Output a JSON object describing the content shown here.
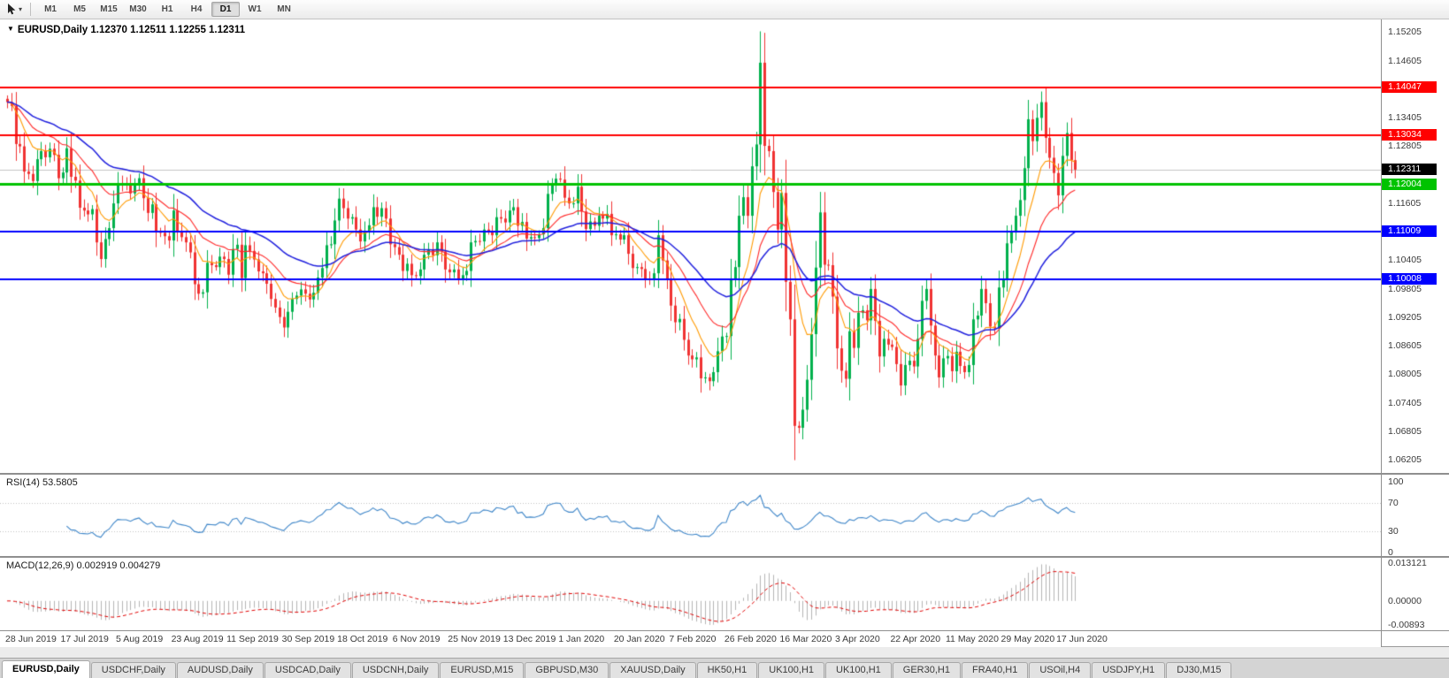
{
  "toolbar": {
    "timeframes": [
      "M1",
      "M5",
      "M15",
      "M30",
      "H1",
      "H4",
      "D1",
      "W1",
      "MN"
    ],
    "active_timeframe": "D1"
  },
  "chart_header": {
    "collapse_icon": "▼",
    "symbol": "EURUSD,Daily",
    "ohlc": "1.12370 1.12511 1.12255 1.12311"
  },
  "chart_data": {
    "type": "candlestick",
    "symbol": "EURUSD",
    "timeframe": "Daily",
    "current_ohlc": {
      "open": "1.12370",
      "high": "1.12511",
      "low": "1.12255",
      "close": "1.12311"
    },
    "first_open": 1.138,
    "closes": [
      1.1373,
      1.1365,
      1.1285,
      1.128,
      1.1227,
      1.1222,
      1.1207,
      1.1253,
      1.127,
      1.1257,
      1.1275,
      1.1262,
      1.1213,
      1.1225,
      1.1276,
      1.1216,
      1.1208,
      1.1151,
      1.1145,
      1.1137,
      1.1148,
      1.1078,
      1.1043,
      1.1085,
      1.1108,
      1.116,
      1.1203,
      1.12,
      1.1199,
      1.1181,
      1.1201,
      1.1213,
      1.1171,
      1.114,
      1.1158,
      1.11,
      1.1098,
      1.1091,
      1.1082,
      1.1145,
      1.1101,
      1.1089,
      1.1078,
      1.1057,
      1.099,
      1.097,
      1.0973,
      1.1035,
      1.103,
      1.1026,
      1.1048,
      1.1043,
      1.101,
      1.1064,
      1.1073,
      1.1003,
      1.1072,
      1.106,
      1.1042,
      1.1017,
      1.1013,
      1.0991,
      1.0959,
      1.0941,
      1.0921,
      1.0899,
      1.0932,
      1.0959,
      1.0966,
      1.0979,
      1.097,
      1.0958,
      1.0972,
      1.1004,
      1.1024,
      1.1072,
      1.1074,
      1.1124,
      1.117,
      1.115,
      1.1128,
      1.1131,
      1.1105,
      1.108,
      1.1101,
      1.1114,
      1.1152,
      1.1132,
      1.115,
      1.1128,
      1.1074,
      1.1068,
      1.1052,
      1.1018,
      1.1033,
      1.1009,
      1.1007,
      1.1021,
      1.1052,
      1.1062,
      1.1051,
      1.1078,
      1.1059,
      1.1021,
      1.1015,
      1.1021,
      1.1001,
      1.1009,
      1.1018,
      1.1078,
      1.1081,
      1.108,
      1.1105,
      1.1102,
      1.1093,
      1.1131,
      1.1128,
      1.112,
      1.1145,
      1.1152,
      1.1113,
      1.1121,
      1.1086,
      1.1089,
      1.1087,
      1.1095,
      1.1108,
      1.118,
      1.1199,
      1.1212,
      1.121,
      1.1172,
      1.116,
      1.116,
      1.1195,
      1.1143,
      1.1106,
      1.1122,
      1.1113,
      1.1134,
      1.1128,
      1.1138,
      1.1093,
      1.1095,
      1.1084,
      1.1093,
      1.1054,
      1.1024,
      1.1026,
      1.1022,
      1.1002,
      1.1,
      1.1013,
      1.1093,
      1.104,
      1.1,
      1.0945,
      1.091,
      1.0917,
      1.0873,
      1.084,
      1.0832,
      1.0836,
      1.0792,
      1.0794,
      1.0786,
      1.0805,
      1.0849,
      1.088,
      1.0881,
      1.1,
      1.1026,
      1.1134,
      1.1173,
      1.1134,
      1.1238,
      1.1284,
      1.1456,
      1.1281,
      1.127,
      1.1184,
      1.1105,
      1.1182,
      1.0995,
      1.0916,
      1.0692,
      1.0688,
      1.0726,
      1.0789,
      1.0885,
      1.1025,
      1.1141,
      1.1031,
      1.103,
      1.0964,
      1.0855,
      1.0808,
      1.0791,
      1.0891,
      1.0856,
      1.093,
      1.0935,
      1.0914,
      1.098,
      1.0913,
      1.0838,
      1.0875,
      1.0863,
      1.0858,
      1.0822,
      1.0777,
      1.082,
      1.0829,
      1.0817,
      1.0875,
      1.0955,
      1.098,
      1.0903,
      1.084,
      1.0794,
      1.0834,
      1.0839,
      1.0807,
      1.0848,
      1.0818,
      1.0805,
      1.082,
      1.0916,
      1.0924,
      1.098,
      1.095,
      1.0901,
      1.0897,
      1.0983,
      1.1002,
      1.1076,
      1.1101,
      1.1134,
      1.1167,
      1.1234,
      1.1337,
      1.1291,
      1.134,
      1.1373,
      1.1298,
      1.1256,
      1.1224,
      1.1177,
      1.126,
      1.1308,
      1.1251,
      1.12311
    ],
    "x_labels": [
      "28 Jun 2019",
      "17 Jul 2019",
      "5 Aug 2019",
      "23 Aug 2019",
      "11 Sep 2019",
      "30 Sep 2019",
      "18 Oct 2019",
      "6 Nov 2019",
      "25 Nov 2019",
      "13 Dec 2019",
      "1 Jan 2020",
      "20 Jan 2020",
      "7 Feb 2020",
      "26 Feb 2020",
      "16 Mar 2020",
      "3 Apr 2020",
      "22 Apr 2020",
      "11 May 2020",
      "29 May 2020",
      "17 Jun 2020"
    ],
    "bars_per_label": 13,
    "price_axis": {
      "min": 1.0593,
      "max": 1.1547,
      "labels": [
        "1.15205",
        "1.14605",
        "1.13405",
        "1.12805",
        "1.11605",
        "1.10405",
        "1.09805",
        "1.09205",
        "1.08605",
        "1.08005",
        "1.07405",
        "1.06805",
        "1.06205"
      ]
    },
    "levels": [
      {
        "price": 1.14047,
        "label": "1.14047",
        "color": "#ff0000",
        "width": 2
      },
      {
        "price": 1.13034,
        "label": "1.13034",
        "color": "#ff0000",
        "width": 2
      },
      {
        "price": 1.12004,
        "label": "1.12004",
        "color": "#00c300",
        "width": 3
      },
      {
        "price": 1.11009,
        "label": "1.11009",
        "color": "#0000ff",
        "width": 2
      },
      {
        "price": 1.10008,
        "label": "1.10008",
        "color": "#0000ff",
        "width": 2
      }
    ],
    "current_price": {
      "value": 1.12311,
      "label": "1.12311",
      "bg": "#000000"
    },
    "candle_colors": {
      "up": "#00b04c",
      "down": "#f03232"
    },
    "moving_averages": [
      {
        "type": "EMA",
        "period": 9,
        "color": "#ff9a00"
      },
      {
        "type": "EMA",
        "period": 20,
        "color": "#ff2a2a"
      },
      {
        "type": "EMA",
        "period": 40,
        "color": "#2020dd"
      }
    ],
    "indicators": [
      {
        "name": "RSI",
        "label": "RSI(14) 53.5805",
        "period": 14,
        "value": 53.5805,
        "line_color": "#3d85c8",
        "range": [
          0,
          100
        ],
        "level_lines": [
          70,
          30
        ],
        "axis_labels": [
          "100",
          "70",
          "30",
          "0"
        ]
      },
      {
        "name": "MACD",
        "label": "MACD(12,26,9) 0.002919 0.004279",
        "fast": 12,
        "slow": 26,
        "signal": 9,
        "macd_value": 0.002919,
        "signal_value": 0.004279,
        "hist_color": "#b4b4b4",
        "signal_color": "#e00000",
        "range": [
          -0.00893,
          0.013121
        ],
        "axis_labels": [
          "0.013121",
          "0.00000",
          "-0.00893"
        ]
      }
    ]
  },
  "tab_bar": {
    "active_index": 0,
    "tabs": [
      "EURUSD,Daily",
      "USDCHF,Daily",
      "AUDUSD,Daily",
      "USDCAD,Daily",
      "USDCNH,Daily",
      "EURUSD,M15",
      "GBPUSD,M30",
      "XAUUSD,Daily",
      "HK50,H1",
      "UK100,H1",
      "UK100,H1",
      "GER30,H1",
      "FRA40,H1",
      "USOil,H4",
      "USDJPY,H1",
      "DJ30,M15"
    ]
  }
}
